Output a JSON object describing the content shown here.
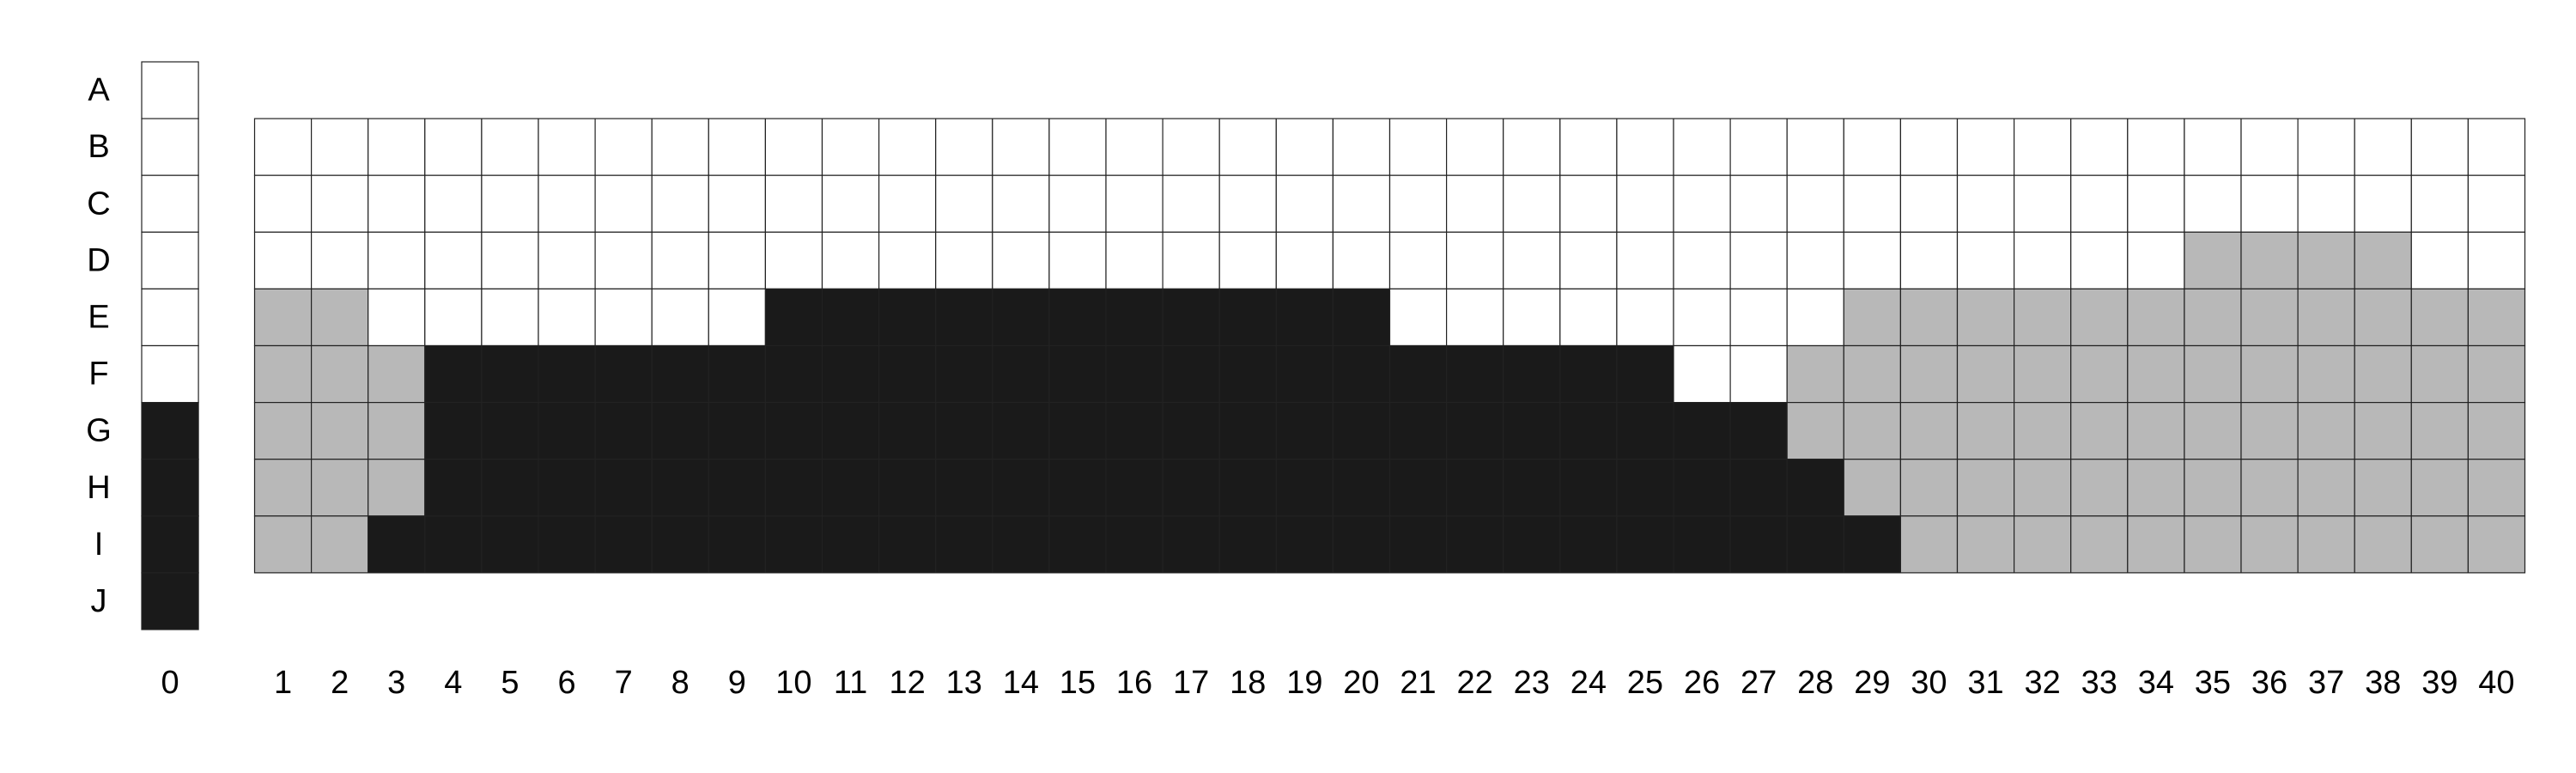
{
  "diagram": {
    "row_labels": [
      "A",
      "B",
      "C",
      "D",
      "E",
      "F",
      "G",
      "H",
      "I",
      "J"
    ],
    "reference_column_label": "0",
    "column_labels": [
      "1",
      "2",
      "3",
      "4",
      "5",
      "6",
      "7",
      "8",
      "9",
      "10",
      "11",
      "12",
      "13",
      "14",
      "15",
      "16",
      "17",
      "18",
      "19",
      "20",
      "21",
      "22",
      "23",
      "24",
      "25",
      "26",
      "27",
      "28",
      "29",
      "30",
      "31",
      "32",
      "33",
      "34",
      "35",
      "36",
      "37",
      "38",
      "39",
      "40"
    ],
    "colors": {
      "white": "#ffffff",
      "gray": "#b8b8b8",
      "black": "#1a1a1a"
    },
    "reference_column": [
      "white",
      "white",
      "white",
      "white",
      "white",
      "white",
      "black",
      "black",
      "black",
      "black"
    ],
    "grid_rows": [
      "B",
      "C",
      "D",
      "E",
      "F",
      "G",
      "H",
      "I"
    ],
    "grid": [
      "WWWWWWWWWWWWWWWWWWWWWWWWWWWWWWWWWWWWWWWW",
      "WWWWWWWWWWWWWWWWWWWWWWWWWWWWWWWWWWWWWWWW",
      "WWWWWWWWWWWWWWWWWWWWWWWWWWWWWWWWWWGGGGWW",
      "GGWWWWWWWBBBBBBBBBBBWWWWWWWWGGGGGGGGGGGG",
      "GGGBBBBBBBBBBBBBBBBBBBBBBWWGGGGGGGGGGGGG",
      "GGGBBBBBBBBBBBBBBBBBBBBBBBBGGGGGGGGGGGGG",
      "GGGBBBBBBBBBBBBBBBBBBBBBBBBBGGGGGGGGGGGG",
      "GGBBBBBBBBBBBBBBBBBBBBBBBBBBBGGGGGGGGGGG"
    ]
  }
}
